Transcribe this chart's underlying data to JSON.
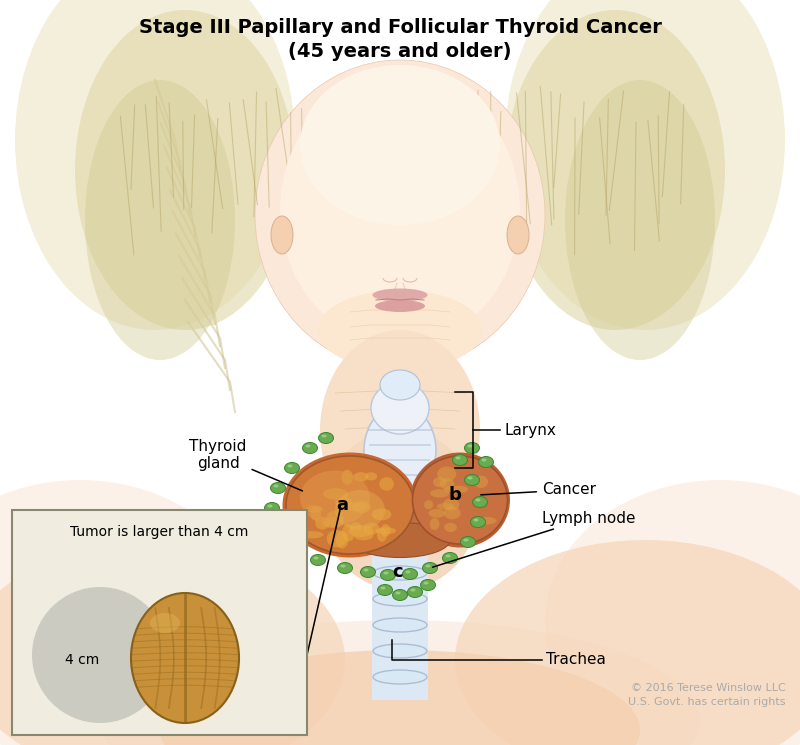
{
  "title_line1": "Stage III Papillary and Follicular Thyroid Cancer",
  "title_line2": "(45 years and older)",
  "title_fontsize": 14,
  "title_fontweight": "bold",
  "background_color": "#ffffff",
  "copyright_text": "© 2016 Terese Winslow LLC\nU.S. Govt. has certain rights",
  "copyright_color": "#aaaaaa",
  "copyright_fontsize": 8,
  "labels": {
    "thyroid_gland": "Thyroid\ngland",
    "larynx": "Larynx",
    "cancer": "Cancer",
    "lymph_node": "Lymph node",
    "trachea": "Trachea",
    "tumor_box_title": "Tumor is larger than 4 cm",
    "tumor_4cm": "4 cm",
    "a": "a",
    "b": "b",
    "c": "c"
  },
  "label_fontsize": 11,
  "skin_pale": "#fce8d8",
  "skin_mid": "#f5d5bc",
  "skin_dark": "#e8b898",
  "hair_color": "#d8cc9a",
  "hair_shadow": "#b8aa70",
  "lip_color": "#e0a8aa",
  "lip_line": "#c08080",
  "ear_color": "#f0c8a8",
  "larynx_color": "#dce8f0",
  "larynx_edge": "#b0c0d8",
  "trachea_color": "#d8e4f0",
  "trachea_edge": "#a8b8d0",
  "thyroid_left_color": "#d4843a",
  "thyroid_left_edge": "#a06020",
  "thyroid_right_color": "#c87848",
  "thyroid_right_edge": "#985030",
  "cancer_spot_color": "#e8b060",
  "isthmus_color": "#c07848",
  "lymph_fill": "#6aaa50",
  "lymph_edge": "#3a8830",
  "lymph_hi": "#aadd90",
  "box_bg": "#f0ede0",
  "box_edge": "#888870",
  "circle_color": "#c0c0b8",
  "walnut_base": "#c89038",
  "walnut_mid": "#b07828",
  "walnut_dark": "#886018",
  "walnut_hi": "#e8c060"
}
